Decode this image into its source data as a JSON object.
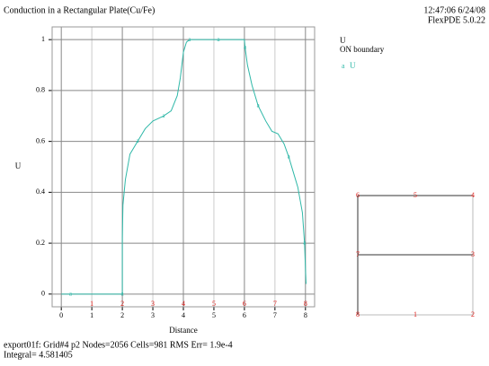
{
  "chart_data": {
    "type": "line",
    "title": "Conduction in a Rectangular Plate(Cu/Fe)",
    "timestamp": "12:47:06 6/24/08",
    "software": "FlexPDE 5.0.22",
    "legend_title": "U",
    "legend_subtitle": "ON boundary",
    "x_label": "Distance",
    "y_label": "U",
    "xlim": [
      -0.3,
      8.3
    ],
    "ylim": [
      -0.05,
      1.05
    ],
    "xticks": [
      0,
      1,
      2,
      3,
      4,
      5,
      6,
      7,
      8
    ],
    "yticks": [
      0,
      0.2,
      0.4,
      0.6,
      0.8,
      1
    ],
    "grid": true,
    "boundary_labels": [
      "1",
      "2",
      "3",
      "4",
      "5",
      "6",
      "7",
      "8"
    ],
    "series": [
      {
        "name": "U",
        "marker": "a",
        "color": "#2fb8a8",
        "x": [
          0,
          0.3,
          1,
          2,
          2,
          2.02,
          2.1,
          2.25,
          2.5,
          2.75,
          3,
          3.35,
          3.6,
          3.8,
          3.9,
          4,
          4.1,
          4.2,
          5,
          5.15,
          6,
          6.02,
          6.1,
          6.25,
          6.45,
          6.7,
          6.9,
          7.1,
          7.3,
          7.45,
          7.6,
          7.75,
          7.9,
          7.97,
          8,
          8.02
        ],
        "values": [
          0,
          0,
          0,
          0,
          0.22,
          0.35,
          0.45,
          0.55,
          0.6,
          0.65,
          0.68,
          0.7,
          0.72,
          0.78,
          0.85,
          0.95,
          0.99,
          1,
          1,
          1,
          1,
          0.97,
          0.9,
          0.82,
          0.74,
          0.68,
          0.64,
          0.63,
          0.59,
          0.54,
          0.48,
          0.42,
          0.32,
          0.2,
          0.1,
          0.04
        ]
      }
    ],
    "domain_labels": [
      "6",
      "5",
      "4",
      "7",
      "3",
      "8",
      "1",
      "2"
    ],
    "footer": "export01f:  Grid#4  p2  Nodes=2056 Cells=981 RMS Err= 1.9e-4",
    "integral": "Integral=   4.581405"
  }
}
